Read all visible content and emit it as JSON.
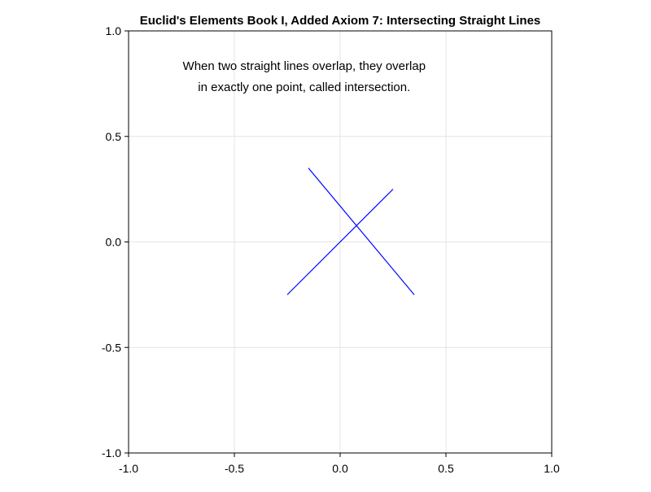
{
  "chart_data": {
    "type": "line",
    "title": "Euclid's Elements Book I, Added Axiom 7: Intersecting Straight Lines",
    "xlabel": "",
    "ylabel": "",
    "xlim": [
      -1.0,
      1.0
    ],
    "ylim": [
      -1.0,
      1.0
    ],
    "x_ticks": [
      -1.0,
      -0.5,
      0.0,
      0.5,
      1.0
    ],
    "y_ticks": [
      -1.0,
      -0.5,
      0.0,
      0.5,
      1.0
    ],
    "x_tick_labels": [
      "-1.0",
      "-0.5",
      "0.0",
      "0.5",
      "1.0"
    ],
    "y_tick_labels": [
      "-1.0",
      "-0.5",
      "0.0",
      "0.5",
      "1.0"
    ],
    "grid": true,
    "aspect": "equal",
    "series": [
      {
        "x": [
          -0.25,
          0.25
        ],
        "y": [
          -0.25,
          0.25
        ],
        "color": "#0000ff"
      },
      {
        "x": [
          -0.15,
          0.35
        ],
        "y": [
          0.35,
          -0.25
        ],
        "color": "#0000ff"
      }
    ],
    "annotation": {
      "lines": [
        "When two straight lines overlap, they overlap",
        "in exactly one point, called intersection."
      ],
      "x": -0.17,
      "y": [
        0.835,
        0.735
      ]
    }
  }
}
